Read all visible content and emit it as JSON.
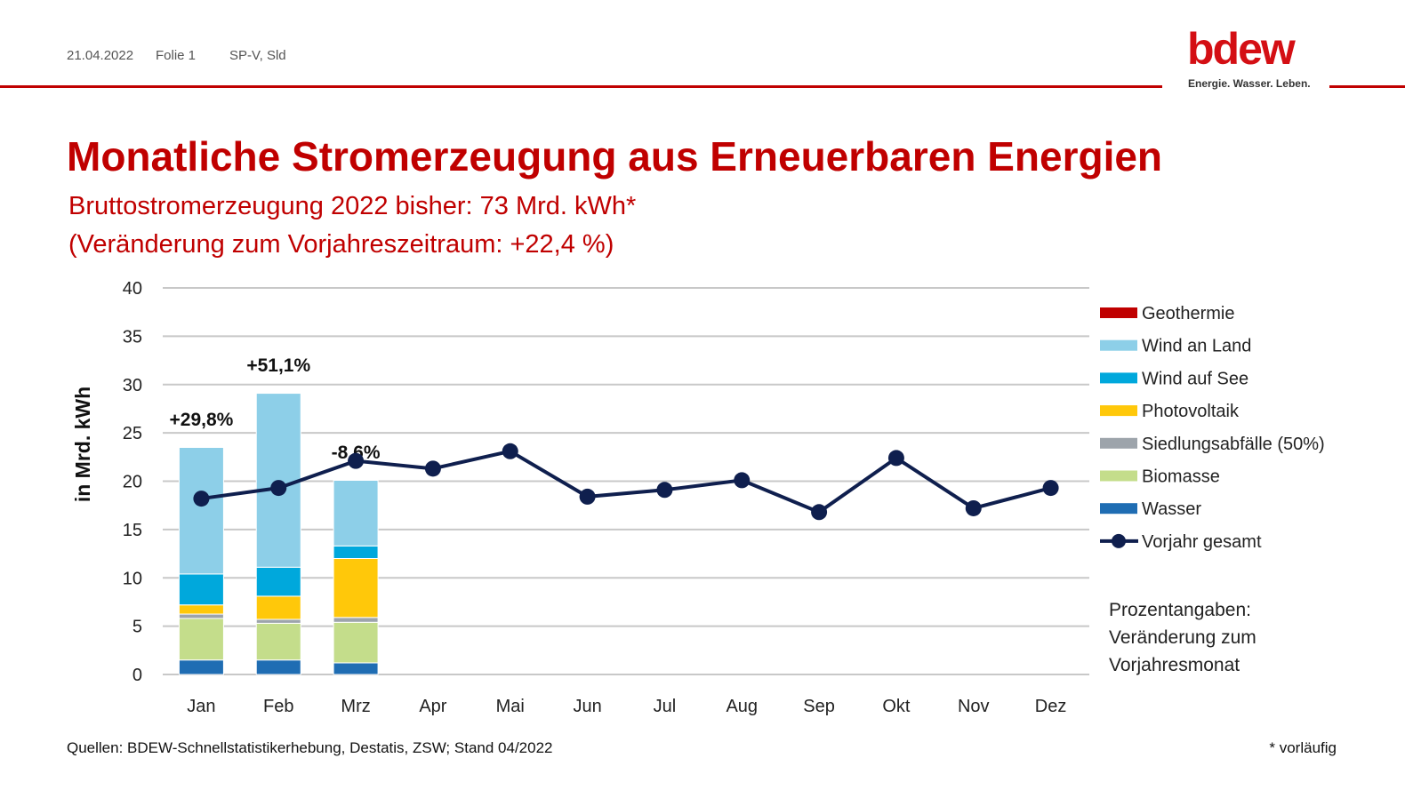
{
  "header": {
    "date": "21.04.2022",
    "slide": "Folie 1",
    "author": "SP-V, Sld",
    "logo": "bdew",
    "tagline": "Energie. Wasser. Leben."
  },
  "chart_data": {
    "type": "bar",
    "stacked": true,
    "title": "Monatliche Stromerzeugung aus Erneuerbaren Energien",
    "subtitle": [
      "Bruttostromerzeugung 2022 bisher: 73 Mrd. kWh*",
      "(Veränderung zum Vorjahreszeitraum: +22,4 %)"
    ],
    "y_label": "in Mrd. kWh",
    "categories": [
      "Jan",
      "Feb",
      "Mrz",
      "Apr",
      "Mai",
      "Jun",
      "Jul",
      "Aug",
      "Sep",
      "Okt",
      "Nov",
      "Dez"
    ],
    "series": [
      {
        "name": "Wasser",
        "color": "#1f6db3",
        "values": [
          1.5,
          1.5,
          1.2,
          null,
          null,
          null,
          null,
          null,
          null,
          null,
          null,
          null
        ]
      },
      {
        "name": "Biomasse",
        "color": "#c4dd8b",
        "values": [
          4.3,
          3.8,
          4.2,
          null,
          null,
          null,
          null,
          null,
          null,
          null,
          null,
          null
        ]
      },
      {
        "name": "Siedlungsabfälle (50%)",
        "color": "#9da4ab",
        "values": [
          0.45,
          0.4,
          0.5,
          null,
          null,
          null,
          null,
          null,
          null,
          null,
          null,
          null
        ]
      },
      {
        "name": "Photovoltaik",
        "color": "#ffc80a",
        "values": [
          0.95,
          2.4,
          6.1,
          null,
          null,
          null,
          null,
          null,
          null,
          null,
          null,
          null
        ]
      },
      {
        "name": "Wind auf See",
        "color": "#00a8dc",
        "values": [
          3.2,
          3.0,
          1.3,
          null,
          null,
          null,
          null,
          null,
          null,
          null,
          null,
          null
        ]
      },
      {
        "name": "Wind an Land",
        "color": "#8dcfe8",
        "values": [
          13.1,
          18.0,
          6.8,
          null,
          null,
          null,
          null,
          null,
          null,
          null,
          null,
          null
        ]
      },
      {
        "name": "Geothermie",
        "color": "#c00000",
        "values": [
          0.05,
          0.05,
          0.05,
          null,
          null,
          null,
          null,
          null,
          null,
          null,
          null,
          null
        ]
      },
      {
        "name": "Vorjahr gesamt",
        "type": "line",
        "color": "#0f1f4e",
        "values": [
          18.2,
          19.3,
          22.1,
          21.3,
          23.1,
          18.4,
          19.1,
          20.1,
          16.8,
          22.4,
          17.2,
          19.3
        ]
      }
    ],
    "annotations": [
      "+29,8%",
      "+51,1%",
      "-8,6%"
    ],
    "note": [
      "Prozentangaben:",
      "Veränderung zum",
      "Vorjahresmonat"
    ],
    "ylim": [
      0,
      40
    ],
    "yticks": [
      0,
      5,
      10,
      15,
      20,
      25,
      30,
      35,
      40
    ],
    "grid": true,
    "legend": "right"
  },
  "footer": {
    "source": "Quellen: BDEW-Schnellstatistikerhebung, Destatis, ZSW; Stand 04/2022",
    "footnote": "* vorläufig"
  }
}
